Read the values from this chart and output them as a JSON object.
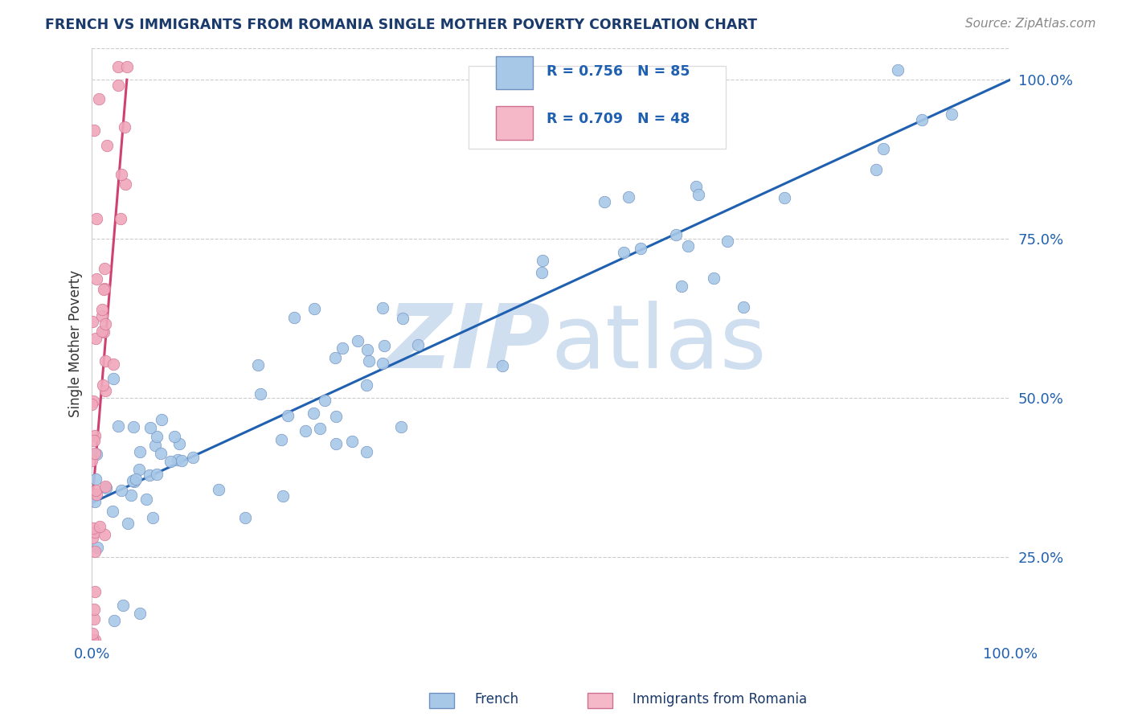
{
  "title": "FRENCH VS IMMIGRANTS FROM ROMANIA SINGLE MOTHER POVERTY CORRELATION CHART",
  "source": "Source: ZipAtlas.com",
  "ylabel": "Single Mother Poverty",
  "y_ticks": [
    0.25,
    0.5,
    0.75,
    1.0
  ],
  "y_tick_labels": [
    "25.0%",
    "50.0%",
    "75.0%",
    "100.0%"
  ],
  "x_tick_labels": [
    "0.0%",
    "100.0%"
  ],
  "french_R": 0.756,
  "french_N": 85,
  "romanian_R": 0.709,
  "romanian_N": 48,
  "french_color": "#a8c8e8",
  "romanian_color": "#f0a8bc",
  "french_edge": "#7090c0",
  "romanian_edge": "#d07090",
  "trend_blue": "#2060b0",
  "trend_pink": "#d04070",
  "legend_box_french": "#a8c8e8",
  "legend_box_romanian": "#f4b8c8",
  "title_color": "#1a3a6b",
  "tick_color": "#2060b0",
  "watermark_color": "#d0dff0",
  "background_color": "#ffffff",
  "xlim": [
    0.0,
    1.0
  ],
  "ylim": [
    0.12,
    1.05
  ],
  "french_trend_x0": 0.0,
  "french_trend_y0": 0.335,
  "french_trend_x1": 1.0,
  "french_trend_y1": 1.0,
  "romanian_trend_x0": 0.0,
  "romanian_trend_y0": 0.33,
  "romanian_trend_x1": 0.038,
  "romanian_trend_y1": 1.0,
  "seed": 17
}
